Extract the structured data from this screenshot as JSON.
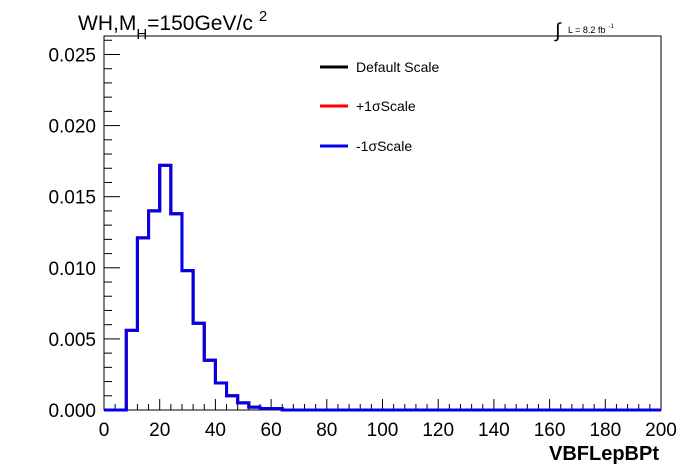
{
  "chart_data": {
    "type": "histogram",
    "title": {
      "prefix": "WH,M",
      "subscript": "H",
      "main": "=150GeV/c",
      "superscript": "2"
    },
    "luminosity": {
      "integral_symbol": "∫",
      "text": "L = 8.2 fb",
      "superscript": "-1"
    },
    "xlabel": "VBFLepBPt",
    "ylabel": "",
    "xlim": [
      0,
      200
    ],
    "ylim": [
      0,
      0.0263
    ],
    "x_ticks": [
      "0",
      "20",
      "40",
      "60",
      "80",
      "100",
      "120",
      "140",
      "160",
      "180",
      "200"
    ],
    "x_tick_values": [
      0,
      20,
      40,
      60,
      80,
      100,
      120,
      140,
      160,
      180,
      200
    ],
    "y_ticks": [
      "0.000",
      "0.005",
      "0.010",
      "0.015",
      "0.020",
      "0.025"
    ],
    "y_tick_values": [
      0,
      0.005,
      0.01,
      0.015,
      0.02,
      0.025
    ],
    "bin_width": 4,
    "bin_edges_start": 0,
    "series": [
      {
        "name": "Default Scale",
        "color": "#000000",
        "values": [
          0,
          0,
          0.0056,
          0.0121,
          0.014,
          0.0172,
          0.0138,
          0.0098,
          0.0061,
          0.0035,
          0.0019,
          0.001,
          0.0005,
          0.0002,
          0.0001,
          0.0001,
          0,
          0,
          0,
          0,
          0,
          0,
          0,
          0,
          0,
          0,
          0,
          0,
          0,
          0,
          0,
          0,
          0,
          0,
          0,
          0,
          0,
          0,
          0,
          0,
          0,
          0,
          0,
          0,
          0,
          0,
          0,
          0,
          0,
          0
        ]
      },
      {
        "name": "+1σScale",
        "color": "#ff0000",
        "values": [
          0,
          0,
          0.0056,
          0.0121,
          0.014,
          0.0172,
          0.0138,
          0.0098,
          0.0061,
          0.0035,
          0.0019,
          0.001,
          0.0005,
          0.0002,
          0.0001,
          0.0001,
          0,
          0,
          0,
          0,
          0,
          0,
          0,
          0,
          0,
          0,
          0,
          0,
          0,
          0,
          0,
          0,
          0,
          0,
          0,
          0,
          0,
          0,
          0,
          0,
          0,
          0,
          0,
          0,
          0,
          0,
          0,
          0,
          0,
          0
        ]
      },
      {
        "name": "-1σScale",
        "color": "#0000ee",
        "values": [
          0,
          0,
          0.0056,
          0.0121,
          0.014,
          0.0172,
          0.0138,
          0.0098,
          0.0061,
          0.0035,
          0.0019,
          0.001,
          0.0005,
          0.0002,
          0.0001,
          0.0001,
          0,
          0,
          0,
          0,
          0,
          0,
          0,
          0,
          0,
          0,
          0,
          0,
          0,
          0,
          0,
          0,
          0,
          0,
          0,
          0,
          0,
          0,
          0,
          0,
          0,
          0,
          0,
          0,
          0,
          0,
          0,
          0,
          0,
          0
        ]
      }
    ],
    "legend": {
      "placement": "top-center",
      "entries": [
        "Default Scale",
        "+1σScale",
        "-1σScale"
      ]
    },
    "grid": false
  }
}
